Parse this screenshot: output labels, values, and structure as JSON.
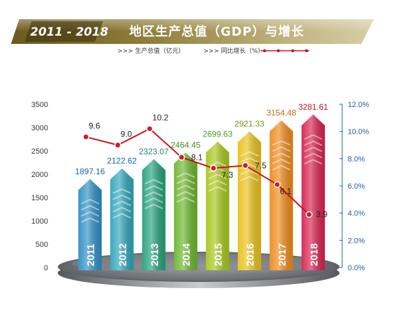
{
  "banner": {
    "years": "2011 - 2018",
    "title": "地区生产总值（GDP）与增长"
  },
  "legend": {
    "gdp": ">>> 生产总值（亿元）",
    "growth": ">>> 同比增长（%）"
  },
  "colors": {
    "growth_line": "#c8141e",
    "growth_point": "#cc1f27",
    "right_axis": "#1f5fa8",
    "bars": [
      "#2f8fc4",
      "#2fa5b8",
      "#26a27a",
      "#6cb52e",
      "#a8c61c",
      "#e8c11a",
      "#ee8a1a",
      "#d8224e"
    ],
    "bar_labels": [
      "#1f5fa8",
      "#1f5fa8",
      "#1e8c5e",
      "#3f8f1e",
      "#4a9a2a",
      "#6a9a1a",
      "#c86a14",
      "#c8141e"
    ]
  },
  "chart_data": {
    "type": "bar",
    "categories": [
      "2011",
      "2012",
      "2013",
      "2014",
      "2015",
      "2016",
      "2017",
      "2018"
    ],
    "series": [
      {
        "name": "生产总值（亿元）",
        "type": "bar",
        "axis": "left",
        "values": [
          1897.16,
          2122.62,
          2323.07,
          2464.45,
          2699.63,
          2921.33,
          3154.48,
          3281.61
        ]
      },
      {
        "name": "同比增长（%）",
        "type": "line",
        "axis": "right",
        "values": [
          9.6,
          9.0,
          10.2,
          8.1,
          7.3,
          7.5,
          6.1,
          3.9
        ]
      }
    ],
    "value_labels": [
      "1897.16",
      "2122.62",
      "2323.07",
      "2464.45",
      "2699.63",
      "2921.33",
      "3154.48",
      "3281.61"
    ],
    "growth_labels": [
      "9.6",
      "9.0",
      "10.2",
      "8.1",
      "7.3",
      "7.5",
      "6.1",
      "3.9"
    ],
    "y_left": {
      "ticks": [
        "0",
        "500",
        "1000",
        "1500",
        "2000",
        "2500",
        "3000",
        "3500"
      ],
      "lim": [
        0,
        3500
      ]
    },
    "y_right": {
      "ticks": [
        "0.0%",
        "2.0%",
        "4.0%",
        "6.0%",
        "8.0%",
        "10.0%",
        "12.0%"
      ],
      "lim": [
        0,
        12
      ]
    },
    "grid": false,
    "legend_position": "top"
  }
}
